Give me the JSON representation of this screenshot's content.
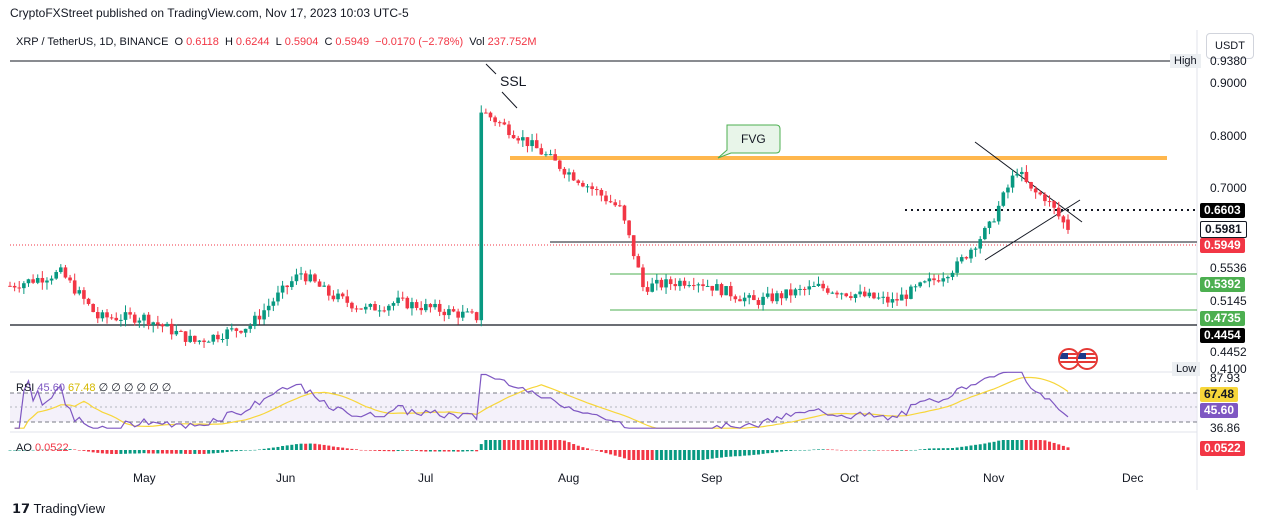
{
  "header": {
    "published": "CryptoFXStreet published on TradingView.com, Nov 17, 2023 10:03 UTC-5"
  },
  "legend": {
    "symbol": "XRP / TetherUS, 1D, BINANCE",
    "o_label": "O",
    "o": "0.6118",
    "h_label": "H",
    "h": "0.6244",
    "l_label": "L",
    "l": "0.5904",
    "c_label": "C",
    "c": "0.5949",
    "change": "−0.0170 (−2.78%)",
    "vol_label": "Vol",
    "vol": "237.752M"
  },
  "currency": "USDT",
  "price_axis": [
    "0.9380",
    "0.9000",
    "0.8000",
    "0.7000",
    "0.5536",
    "0.5145",
    "0.4452",
    "0.4100"
  ],
  "price_boxes": {
    "b6603": "0.6603",
    "b5981": "0.5981",
    "b5949": "0.5949",
    "b5392": "0.5392",
    "b4735": "0.4735",
    "b4454": "0.4454"
  },
  "high_label": "High",
  "low_label": "Low",
  "annotations": {
    "ssl": "SSL",
    "fvg": "FVG"
  },
  "rsi": {
    "label": "RSI",
    "v1": "45.60",
    "v2": "67.48",
    "rest": "∅ ∅ ∅ ∅ ∅ ∅",
    "axis_top": "87.93",
    "axis_bottom": "36.86",
    "box1": "67.48",
    "box2": "45.60"
  },
  "ao": {
    "label": "AO",
    "value": "0.0522",
    "box": "0.0522"
  },
  "dates": [
    "May",
    "Jun",
    "Jul",
    "Aug",
    "Sep",
    "Oct",
    "Nov",
    "Dec"
  ],
  "footer": "TradingView",
  "colors": {
    "up": "#089981",
    "down": "#f23645",
    "fvg": "#ffb74d",
    "rsi": "#7e57c2",
    "rsi_ma": "#f7d63a",
    "level_green": "#4caf50"
  },
  "chart_data": {
    "type": "candlestick",
    "symbol": "XRP / TetherUS",
    "interval": "1D",
    "x_range": [
      "2023-04-02",
      "2023-11-17"
    ],
    "ylim": [
      0.41,
      0.938
    ],
    "y_scale": "log",
    "last": {
      "open": 0.6118,
      "high": 0.6244,
      "low": 0.5904,
      "close": 0.5949
    },
    "levels": [
      0.938,
      0.6603,
      0.5981,
      0.5949,
      0.5392,
      0.4735,
      0.4454
    ],
    "fvg_level": 0.76,
    "keypoints": [
      {
        "date": "2023-04-01",
        "close": 0.51
      },
      {
        "date": "2023-04-13",
        "close": 0.53
      },
      {
        "date": "2023-04-21",
        "close": 0.47
      },
      {
        "date": "2023-05-01",
        "close": 0.47
      },
      {
        "date": "2023-05-12",
        "close": 0.44
      },
      {
        "date": "2023-05-24",
        "close": 0.46
      },
      {
        "date": "2023-06-04",
        "close": 0.53
      },
      {
        "date": "2023-06-10",
        "close": 0.5
      },
      {
        "date": "2023-06-18",
        "close": 0.48
      },
      {
        "date": "2023-06-25",
        "close": 0.49
      },
      {
        "date": "2023-07-12",
        "close": 0.47
      },
      {
        "date": "2023-07-13",
        "close": 0.82
      },
      {
        "date": "2023-07-19",
        "close": 0.78
      },
      {
        "date": "2023-07-31",
        "close": 0.7
      },
      {
        "date": "2023-08-12",
        "close": 0.63
      },
      {
        "date": "2023-08-17",
        "close": 0.51
      },
      {
        "date": "2023-08-28",
        "close": 0.52
      },
      {
        "date": "2023-09-10",
        "close": 0.49
      },
      {
        "date": "2023-09-24",
        "close": 0.51
      },
      {
        "date": "2023-10-10",
        "close": 0.49
      },
      {
        "date": "2023-10-19",
        "close": 0.52
      },
      {
        "date": "2023-10-24",
        "close": 0.54
      },
      {
        "date": "2023-10-31",
        "close": 0.6
      },
      {
        "date": "2023-11-06",
        "close": 0.7
      },
      {
        "date": "2023-11-09",
        "close": 0.66
      },
      {
        "date": "2023-11-12",
        "close": 0.65
      },
      {
        "date": "2023-11-17",
        "close": 0.5949
      }
    ]
  }
}
